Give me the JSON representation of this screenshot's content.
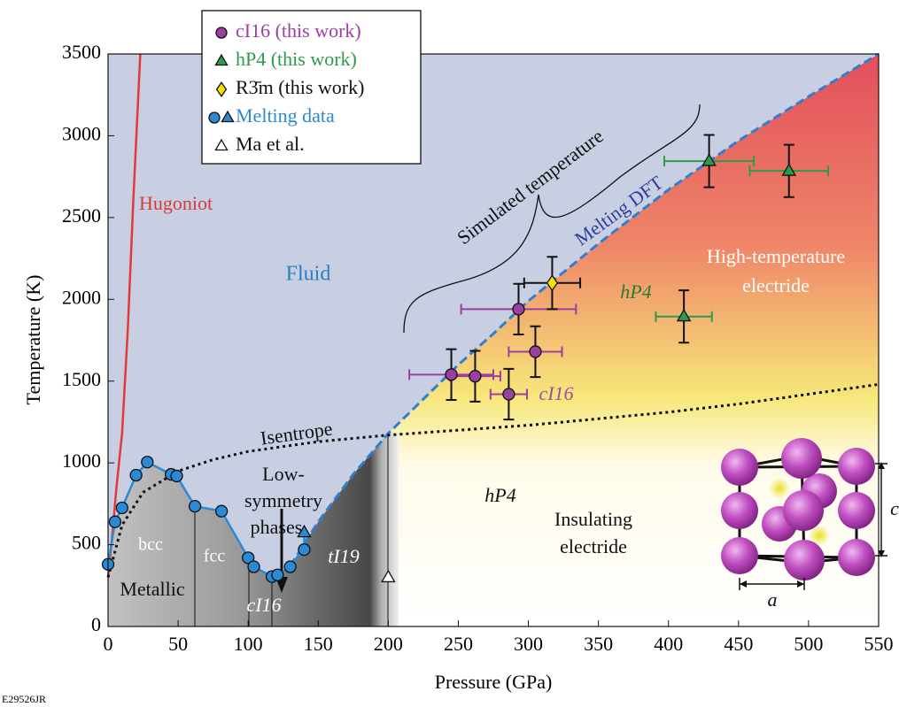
{
  "chart_data": {
    "type": "scatter",
    "xlabel": "Pressure (GPa)",
    "ylabel": "Temperature (K)",
    "xlim": [
      0,
      550
    ],
    "ylim": [
      0,
      3500
    ],
    "xticks": [
      0,
      50,
      100,
      150,
      200,
      250,
      300,
      350,
      400,
      450,
      500,
      550
    ],
    "yticks": [
      0,
      500,
      1000,
      1500,
      2000,
      2500,
      3000,
      3500
    ],
    "series": [
      {
        "name": "Hugoniot",
        "type": "line",
        "color": "#e03a3a",
        "dash": "solid",
        "x": [
          0,
          3,
          6,
          10,
          14,
          18,
          23
        ],
        "values": [
          300,
          560,
          850,
          1180,
          1800,
          2600,
          3500
        ]
      },
      {
        "name": "Melting DFT",
        "type": "line",
        "color": "#2f7fd0",
        "dash": "dashed",
        "x": [
          130,
          150,
          175,
          200,
          225,
          250,
          275,
          300,
          350,
          400,
          450,
          500,
          550
        ],
        "values": [
          370,
          640,
          930,
          1180,
          1390,
          1600,
          1790,
          1990,
          2340,
          2670,
          2970,
          3240,
          3500
        ]
      },
      {
        "name": "Isentrope",
        "type": "line",
        "color": "#111111",
        "dash": "dotted",
        "x": [
          0,
          10,
          25,
          50,
          75,
          100,
          150,
          200,
          250,
          300,
          350,
          400,
          450,
          500,
          550
        ],
        "values": [
          300,
          620,
          820,
          950,
          1020,
          1070,
          1130,
          1170,
          1200,
          1230,
          1270,
          1310,
          1360,
          1420,
          1480
        ]
      },
      {
        "name": "Melting data",
        "type": "scatter",
        "color": "#2c8ad4",
        "connect": true,
        "markers": [
          "circle",
          "circle",
          "circle",
          "circle",
          "circle",
          "circle",
          "circle",
          "circle",
          "circle",
          "circle",
          "circle",
          "circle",
          "circle",
          "circle",
          "circle",
          "triangle"
        ],
        "x": [
          0,
          5,
          10,
          20,
          28,
          45,
          49,
          62,
          81,
          100,
          104,
          117,
          121,
          130,
          140,
          140
        ],
        "values": [
          380,
          640,
          725,
          925,
          1005,
          930,
          920,
          735,
          705,
          420,
          365,
          305,
          315,
          365,
          470,
          575
        ]
      },
      {
        "name": "cI16 (this work)",
        "type": "scatter",
        "marker": "circle",
        "color": "#9b3fa0",
        "xerr_color": "#9b3fa0",
        "x": [
          245,
          262,
          286,
          293,
          305
        ],
        "values": [
          1540,
          1530,
          1420,
          1940,
          1680
        ],
        "xerr": [
          30,
          18,
          13,
          41,
          19
        ],
        "yerr": [
          155,
          155,
          155,
          155,
          155
        ]
      },
      {
        "name": "hP4 (this work)",
        "type": "scatter",
        "marker": "triangle",
        "color": "#2e9a50",
        "xerr_color": "#2e9a50",
        "x": [
          429,
          486,
          411
        ],
        "values": [
          2845,
          2785,
          1895
        ],
        "xerr": [
          32,
          28,
          20
        ],
        "yerr": [
          160,
          160,
          160
        ]
      },
      {
        "name": "R3̄m (this work)",
        "type": "scatter",
        "marker": "diamond",
        "color": "#f5e000",
        "xerr_color": "#111111",
        "x": [
          317
        ],
        "values": [
          2100
        ],
        "xerr": [
          20
        ],
        "yerr": [
          160
        ]
      },
      {
        "name": "Ma et al.",
        "type": "scatter",
        "marker": "triangle",
        "color": "#ffffff",
        "x": [
          200
        ],
        "values": [
          300
        ]
      }
    ],
    "legend": "top-left",
    "annotations": [
      "Fluid",
      "Simulated temperature",
      "High-temperature",
      "electride",
      "hP4",
      "cI16",
      "Low-",
      "symmetry",
      "phases",
      "bcc",
      "fcc",
      "Metallic",
      "cI16",
      "tI19",
      "hP4",
      "Insulating",
      "electride",
      "c",
      "a"
    ],
    "footnote": "E29526JR"
  }
}
